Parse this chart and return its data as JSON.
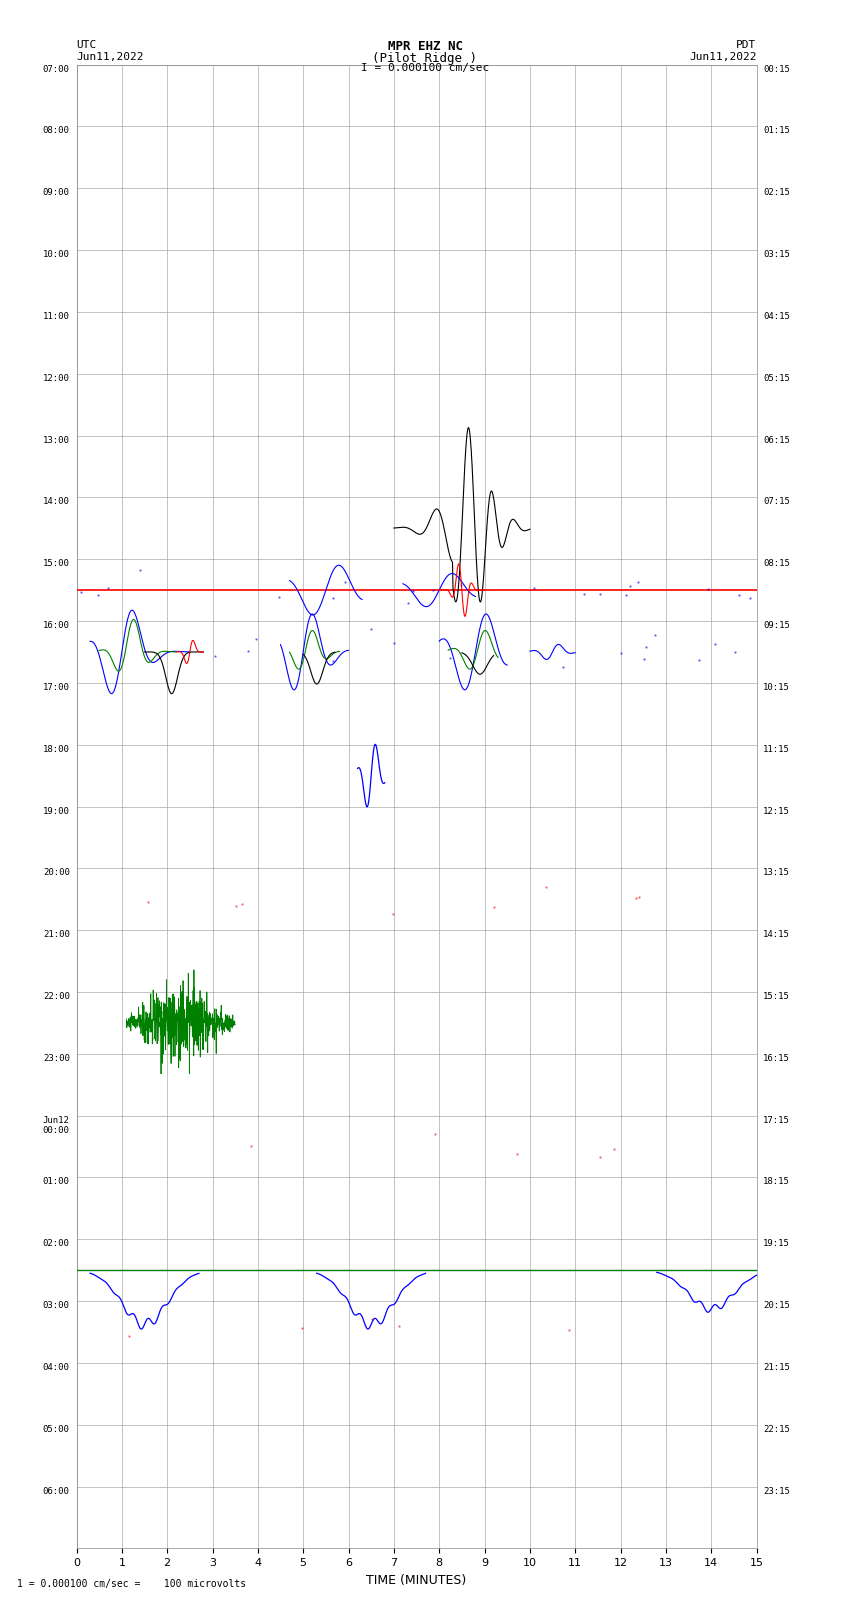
{
  "title_line1": "MPR EHZ NC",
  "title_line2": "(Pilot Ridge )",
  "title_line3": "I = 0.000100 cm/sec",
  "left_header_line1": "UTC",
  "left_header_line2": "Jun11,2022",
  "right_header_line1": "PDT",
  "right_header_line2": "Jun11,2022",
  "xlabel": "TIME (MINUTES)",
  "footer": "1 = 0.000100 cm/sec =    100 microvolts",
  "xlim": [
    0,
    15
  ],
  "xticks": [
    0,
    1,
    2,
    3,
    4,
    5,
    6,
    7,
    8,
    9,
    10,
    11,
    12,
    13,
    14,
    15
  ],
  "left_time_labels": [
    "07:00",
    "08:00",
    "09:00",
    "10:00",
    "11:00",
    "12:00",
    "13:00",
    "14:00",
    "15:00",
    "16:00",
    "17:00",
    "18:00",
    "19:00",
    "20:00",
    "21:00",
    "22:00",
    "23:00",
    "Jun12\n00:00",
    "01:00",
    "02:00",
    "03:00",
    "04:00",
    "05:00",
    "06:00"
  ],
  "right_time_labels": [
    "00:15",
    "01:15",
    "02:15",
    "03:15",
    "04:15",
    "05:15",
    "06:15",
    "07:15",
    "08:15",
    "09:15",
    "10:15",
    "11:15",
    "12:15",
    "13:15",
    "14:15",
    "15:15",
    "16:15",
    "17:15",
    "18:15",
    "19:15",
    "20:15",
    "21:15",
    "22:15",
    "23:15"
  ],
  "num_rows": 24,
  "background_color": "white",
  "grid_color": "#aaaaaa",
  "red_line_row": 8,
  "green_line_row": 19
}
